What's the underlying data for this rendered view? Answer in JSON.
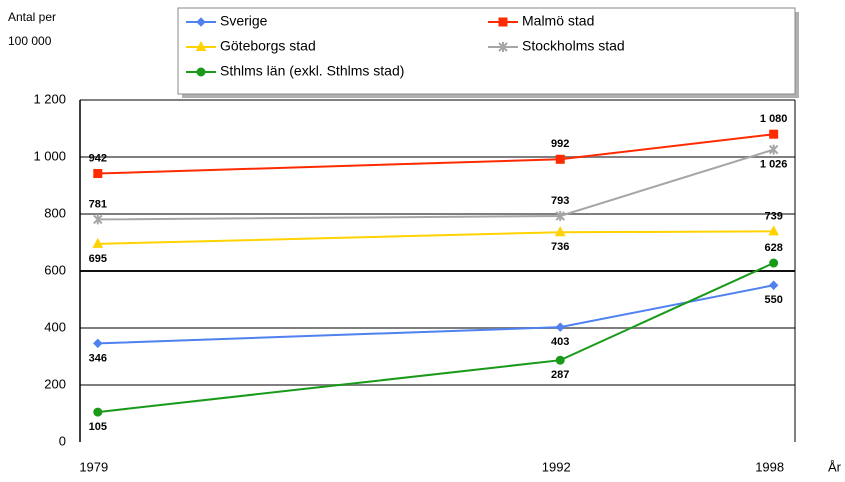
{
  "chart_data": {
    "type": "line",
    "y_label_lines": [
      "Antal per",
      "100 000"
    ],
    "x_label": "År",
    "x": [
      1979,
      1992,
      1998
    ],
    "xlim": [
      1978.5,
      1998.6
    ],
    "xticks": [
      1979,
      1992,
      1998
    ],
    "ylim": [
      0,
      1200
    ],
    "yticks": [
      0,
      200,
      400,
      600,
      {
        "value": 800,
        "label": "800"
      },
      {
        "value": 1000,
        "label": "1 000"
      },
      {
        "value": 1200,
        "label": "1 200"
      }
    ],
    "grid": true,
    "series": [
      {
        "name": "Sverige",
        "color": "#4f81f0",
        "marker": "diamond",
        "values": [
          346,
          403,
          550
        ]
      },
      {
        "name": "Malmö stad",
        "color": "#ff2a00",
        "marker": "square",
        "values": [
          942,
          992,
          1080
        ],
        "value_labels": [
          "942",
          "992",
          "1 080"
        ]
      },
      {
        "name": "Göteborgs stad",
        "color": "#ffd200",
        "marker": "triangle",
        "values": [
          695,
          736,
          739
        ]
      },
      {
        "name": "Stockholms stad",
        "color": "#a6a6a6",
        "marker": "cross",
        "values": [
          781,
          793,
          1026
        ],
        "value_labels": [
          "781",
          "793",
          "1 026"
        ]
      },
      {
        "name": "Sthlms län (exkl. Sthlms stad)",
        "color": "#1a9a1a",
        "marker": "circle",
        "values": [
          105,
          287,
          628
        ]
      }
    ]
  }
}
